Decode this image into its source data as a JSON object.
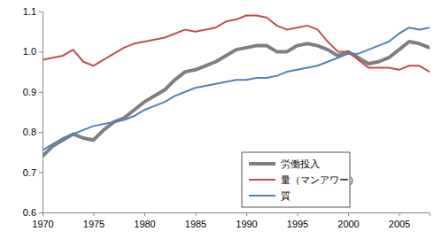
{
  "chart_data": {
    "type": "line",
    "x": [
      1970,
      1971,
      1972,
      1973,
      1974,
      1975,
      1976,
      1977,
      1978,
      1979,
      1980,
      1981,
      1982,
      1983,
      1984,
      1985,
      1986,
      1987,
      1988,
      1989,
      1990,
      1991,
      1992,
      1993,
      1994,
      1995,
      1996,
      1997,
      1998,
      1999,
      2000,
      2001,
      2002,
      2003,
      2004,
      2005,
      2006,
      2007,
      2008
    ],
    "series": [
      {
        "name": "労働投入",
        "color": "#7f7f7f",
        "values": [
          0.74,
          0.765,
          0.78,
          0.795,
          0.785,
          0.78,
          0.805,
          0.825,
          0.835,
          0.855,
          0.875,
          0.89,
          0.905,
          0.93,
          0.95,
          0.955,
          0.965,
          0.975,
          0.99,
          1.005,
          1.01,
          1.015,
          1.015,
          1.0,
          1.0,
          1.015,
          1.02,
          1.015,
          1.005,
          0.99,
          1.0,
          0.985,
          0.97,
          0.975,
          0.985,
          1.005,
          1.025,
          1.02,
          1.01
        ]
      },
      {
        "name": "量（マンアワー）",
        "color": "#c0504d",
        "values": [
          0.98,
          0.985,
          0.99,
          1.005,
          0.975,
          0.965,
          0.98,
          0.995,
          1.01,
          1.02,
          1.025,
          1.03,
          1.035,
          1.045,
          1.055,
          1.05,
          1.055,
          1.06,
          1.075,
          1.08,
          1.09,
          1.09,
          1.085,
          1.065,
          1.055,
          1.06,
          1.065,
          1.055,
          1.025,
          1.0,
          1.0,
          0.98,
          0.96,
          0.96,
          0.96,
          0.955,
          0.965,
          0.965,
          0.95
        ]
      },
      {
        "name": "質",
        "color": "#4f81bd",
        "values": [
          0.755,
          0.77,
          0.785,
          0.795,
          0.805,
          0.815,
          0.82,
          0.825,
          0.83,
          0.84,
          0.855,
          0.865,
          0.875,
          0.89,
          0.9,
          0.91,
          0.915,
          0.92,
          0.925,
          0.93,
          0.93,
          0.935,
          0.935,
          0.94,
          0.95,
          0.955,
          0.96,
          0.965,
          0.975,
          0.985,
          0.995,
          0.995,
          1.005,
          1.015,
          1.025,
          1.045,
          1.06,
          1.055,
          1.06
        ]
      }
    ],
    "xlim": [
      1970,
      2008
    ],
    "xticks": [
      1970,
      1975,
      1980,
      1985,
      1990,
      1995,
      2000,
      2005
    ],
    "ylim": [
      0.6,
      1.1
    ],
    "yticks": [
      0.6,
      0.7,
      0.8,
      0.9,
      {
        "value": 1,
        "label": "1.0"
      },
      1.1
    ],
    "grid": false,
    "legend": "right"
  }
}
